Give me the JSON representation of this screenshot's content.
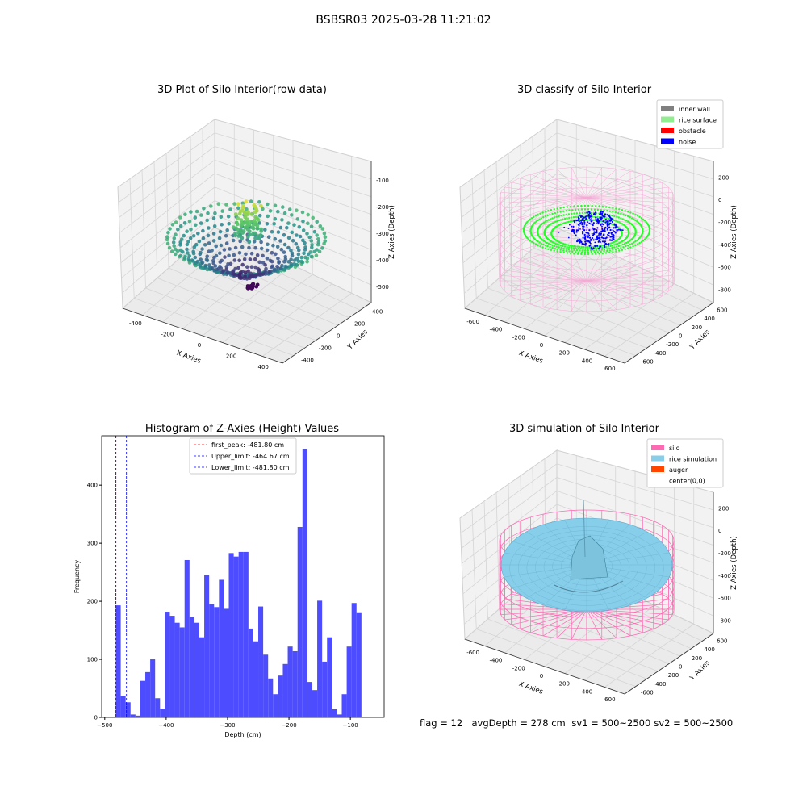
{
  "suptitle": "BSBSR03 2025-03-28 11:21:02",
  "status": {
    "flag": "flag = 12",
    "avg_depth": "avgDepth = 278 cm",
    "sv1": "sv1 = 500~2500",
    "sv2": "sv2 = 500~2500"
  },
  "colors": {
    "viridis_low": "#440154",
    "viridis_mid": "#21918c",
    "viridis_high": "#fde725",
    "inner_wall": "#808080",
    "rice_surface": "#90ee90",
    "obstacle": "#ff0000",
    "noise": "#0000ff",
    "silo": "#ff69b4",
    "rice_simulation": "#87ceeb",
    "auger": "#ff4500",
    "hist_bar": "#4d4dff"
  },
  "chart_data": [
    {
      "type": "scatter",
      "title": "3D Plot of Silo Interior(row data)",
      "xlabel": "X Axies",
      "ylabel": "Y Axies",
      "zlabel": "Z Axies (Depth)",
      "x_ticks": [
        "-400",
        "-200",
        "0",
        "200",
        "400"
      ],
      "y_ticks": [
        "400",
        "200",
        "0",
        "-200",
        "-400"
      ],
      "z_ticks": [
        "-100",
        "-200",
        "-300",
        "-400",
        "-500"
      ],
      "xlim": [
        -450,
        450
      ],
      "ylim": [
        -450,
        450
      ],
      "zlim": [
        -530,
        -80
      ],
      "colormap": "viridis"
    },
    {
      "type": "scatter",
      "title": "3D classify of Silo Interior",
      "xlabel": "X Axies",
      "ylabel": "Y Axies",
      "zlabel": "Z Axies (Depth)",
      "x_ticks": [
        "-600",
        "-400",
        "-200",
        "0",
        "200",
        "400",
        "600"
      ],
      "y_ticks": [
        "600",
        "400",
        "200",
        "0",
        "-200",
        "-400",
        "-600"
      ],
      "z_ticks": [
        "200",
        "0",
        "-200",
        "-400",
        "-600",
        "-800"
      ],
      "legend": [
        "inner wall",
        "rice surface",
        "obstacle",
        "noise"
      ],
      "legend_position": "top-right"
    },
    {
      "type": "bar",
      "title": "Histogram of Z-Axies (Height) Values",
      "xlabel": "Depth (cm)",
      "ylabel": "Frequency",
      "x_ticks": [
        "−500",
        "−400",
        "−300",
        "−200",
        "−100"
      ],
      "y_ticks": [
        "0",
        "100",
        "200",
        "300",
        "400"
      ],
      "xlim": [
        -505,
        -45
      ],
      "ylim": [
        0,
        485
      ],
      "bin_start": -482,
      "bin_width": 8,
      "values": [
        193,
        37,
        26,
        5,
        3,
        63,
        78,
        100,
        33,
        15,
        182,
        175,
        163,
        155,
        271,
        173,
        163,
        138,
        245,
        195,
        190,
        237,
        187,
        283,
        277,
        285,
        285,
        153,
        131,
        191,
        108,
        67,
        40,
        72,
        92,
        122,
        114,
        328,
        462,
        61,
        47,
        201,
        96,
        138,
        14,
        5,
        40,
        122,
        197,
        181
      ],
      "vlines": [
        {
          "label": "first_peak: -481.80 cm",
          "x": -481.8,
          "color": "#ff0000"
        },
        {
          "label": "Upper_limit: -464.67 cm",
          "x": -464.67,
          "color": "#0000ff"
        },
        {
          "label": "Lower_limit: -481.80 cm",
          "x": -481.8,
          "color": "#0000ff"
        }
      ],
      "legend_position": "top-center"
    },
    {
      "type": "scatter",
      "title": "3D simulation of Silo Interior",
      "xlabel": "X Axies",
      "ylabel": "Y Axies",
      "zlabel": "Z Axies (Depth)",
      "x_ticks": [
        "-600",
        "-400",
        "-200",
        "0",
        "200",
        "400",
        "600"
      ],
      "y_ticks": [
        "600",
        "400",
        "200",
        "0",
        "-200",
        "-400",
        "-600"
      ],
      "z_ticks": [
        "200",
        "0",
        "-200",
        "-400",
        "-600",
        "-800"
      ],
      "legend": [
        "silo",
        "rice simulation",
        "auger",
        "center(0,0)"
      ],
      "legend_position": "top-right"
    }
  ]
}
